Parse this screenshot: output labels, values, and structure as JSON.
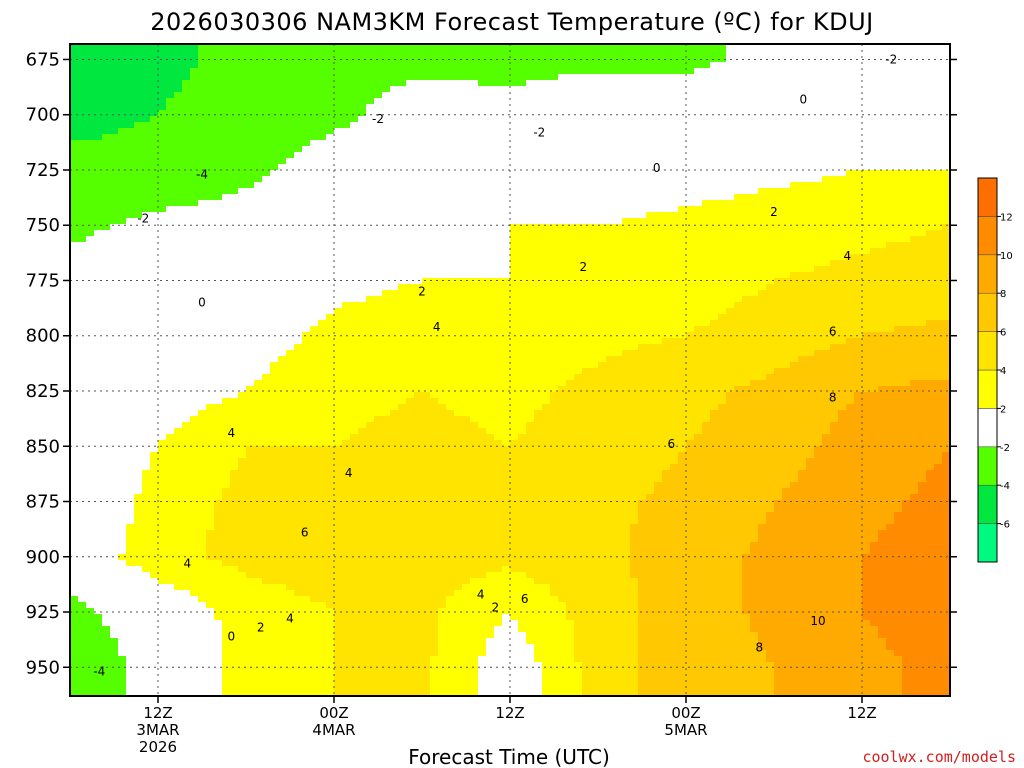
{
  "chart_data": {
    "type": "filled-contour",
    "title": "2026030306 NAM3KM Forecast Temperature (ºC) for KDUJ",
    "xlabel": "Forecast Time (UTC)",
    "ylabel": "",
    "y_axis": {
      "unit": "hPa",
      "reversed": true,
      "ylim": [
        963,
        668
      ],
      "ticks": [
        675,
        700,
        725,
        750,
        775,
        800,
        825,
        850,
        875,
        900,
        925,
        950
      ]
    },
    "x_axis": {
      "xlim_hours": [
        0,
        60
      ],
      "ticks": [
        {
          "hour": 6,
          "lines": [
            "12Z",
            "3MAR",
            "2026"
          ]
        },
        {
          "hour": 18,
          "lines": [
            "00Z",
            "4MAR"
          ]
        },
        {
          "hour": 30,
          "lines": [
            "12Z"
          ]
        },
        {
          "hour": 42,
          "lines": [
            "00Z",
            "5MAR"
          ]
        },
        {
          "hour": 54,
          "lines": [
            "12Z"
          ]
        }
      ]
    },
    "grid": "dotted",
    "colorbar": {
      "placement": "right",
      "levels": [
        {
          "lo": -8,
          "hi": -6,
          "color": "#00fa7f"
        },
        {
          "lo": -6,
          "hi": -4,
          "color": "#00e840"
        },
        {
          "lo": -4,
          "hi": -2,
          "color": "#55ff00"
        },
        {
          "lo": -2,
          "hi": 2,
          "color": "#ffffff"
        },
        {
          "lo": 2,
          "hi": 4,
          "color": "#ffff00"
        },
        {
          "lo": 4,
          "hi": 6,
          "color": "#ffe400"
        },
        {
          "lo": 6,
          "hi": 8,
          "color": "#ffc800"
        },
        {
          "lo": 8,
          "hi": 10,
          "color": "#ffaa00"
        },
        {
          "lo": 10,
          "hi": 12,
          "color": "#ff8c00"
        },
        {
          "lo": 12,
          "hi": 14,
          "color": "#ff6e00"
        }
      ],
      "tick_labels": [
        "-6",
        "-4",
        "-2",
        "2",
        "4",
        "6",
        "8",
        "10",
        "12"
      ]
    },
    "ground_color": "#a0522d",
    "temperature_profiles_hpa_to_degC": {
      "hours": [
        0,
        6,
        12,
        18,
        24,
        30,
        36,
        42,
        48,
        54,
        60
      ],
      "levels_hpa": [
        675,
        700,
        725,
        750,
        775,
        800,
        825,
        850,
        875,
        900,
        925,
        950
      ],
      "values": [
        [
          -5,
          -4.5,
          -3.5,
          -2.5,
          -2.5,
          -2.5,
          -2.5,
          -2.5,
          -1.5,
          -1.5,
          -1.5
        ],
        [
          -4.5,
          -4,
          -3,
          -2.5,
          -1,
          -1.5,
          -0.5,
          -0.5,
          0,
          0,
          1
        ],
        [
          -3.5,
          -3.5,
          -2.5,
          -1,
          0.5,
          0.5,
          0.5,
          1,
          1.5,
          2,
          2
        ],
        [
          -2.5,
          -1.5,
          -1,
          0.5,
          1.5,
          2,
          2,
          2.5,
          3,
          3.5,
          4
        ],
        [
          -1,
          -0.5,
          0,
          1.5,
          2,
          2,
          2.5,
          3,
          4,
          4.5,
          5
        ],
        [
          -0.5,
          0,
          1,
          2.5,
          3,
          3,
          3.5,
          4,
          5,
          6,
          6.5
        ],
        [
          -0.5,
          1,
          2,
          3.5,
          4,
          3.5,
          4.5,
          5.5,
          6.5,
          8,
          8.5
        ],
        [
          -1,
          2,
          4,
          4,
          4.5,
          4,
          5,
          6,
          7,
          9,
          10
        ],
        [
          -1,
          3,
          4.5,
          4.5,
          4.5,
          4.5,
          5.5,
          6.5,
          8,
          9.5,
          10.5
        ],
        [
          0,
          3.5,
          4.5,
          5,
          5,
          4.5,
          5.5,
          7,
          8.5,
          10,
          11
        ],
        [
          -3,
          0,
          3,
          4,
          4.5,
          2,
          5,
          7,
          8.5,
          10,
          11
        ],
        [
          -4,
          -1,
          3,
          4,
          4.5,
          0.5,
          5,
          7,
          8,
          9.5,
          10.5
        ]
      ]
    },
    "contour_labels": [
      {
        "text": "-2",
        "hour": 56,
        "hpa": 675
      },
      {
        "text": "0",
        "hour": 50,
        "hpa": 693
      },
      {
        "text": "-2",
        "hour": 21,
        "hpa": 702
      },
      {
        "text": "-2",
        "hour": 32,
        "hpa": 708
      },
      {
        "text": "-4",
        "hour": 9,
        "hpa": 727
      },
      {
        "text": "0",
        "hour": 40,
        "hpa": 724
      },
      {
        "text": "-2",
        "hour": 5,
        "hpa": 747
      },
      {
        "text": "2",
        "hour": 48,
        "hpa": 744
      },
      {
        "text": "4",
        "hour": 53,
        "hpa": 764
      },
      {
        "text": "2",
        "hour": 35,
        "hpa": 769
      },
      {
        "text": "2",
        "hour": 24,
        "hpa": 780
      },
      {
        "text": "0",
        "hour": 9,
        "hpa": 785
      },
      {
        "text": "4",
        "hour": 25,
        "hpa": 796
      },
      {
        "text": "6",
        "hour": 52,
        "hpa": 798
      },
      {
        "text": "8",
        "hour": 52,
        "hpa": 828
      },
      {
        "text": "4",
        "hour": 11,
        "hpa": 844
      },
      {
        "text": "6",
        "hour": 41,
        "hpa": 849
      },
      {
        "text": "4",
        "hour": 19,
        "hpa": 862
      },
      {
        "text": "6",
        "hour": 16,
        "hpa": 889
      },
      {
        "text": "4",
        "hour": 8,
        "hpa": 903
      },
      {
        "text": "4",
        "hour": 28,
        "hpa": 917
      },
      {
        "text": "6",
        "hour": 31,
        "hpa": 919
      },
      {
        "text": "2",
        "hour": 29,
        "hpa": 923
      },
      {
        "text": "4",
        "hour": 15,
        "hpa": 928
      },
      {
        "text": "2",
        "hour": 13,
        "hpa": 932
      },
      {
        "text": "10",
        "hour": 51,
        "hpa": 929
      },
      {
        "text": "0",
        "hour": 11,
        "hpa": 936
      },
      {
        "text": "8",
        "hour": 47,
        "hpa": 941
      },
      {
        "text": "-4",
        "hour": 2,
        "hpa": 952
      }
    ]
  },
  "credit": "coolwx.com/models"
}
